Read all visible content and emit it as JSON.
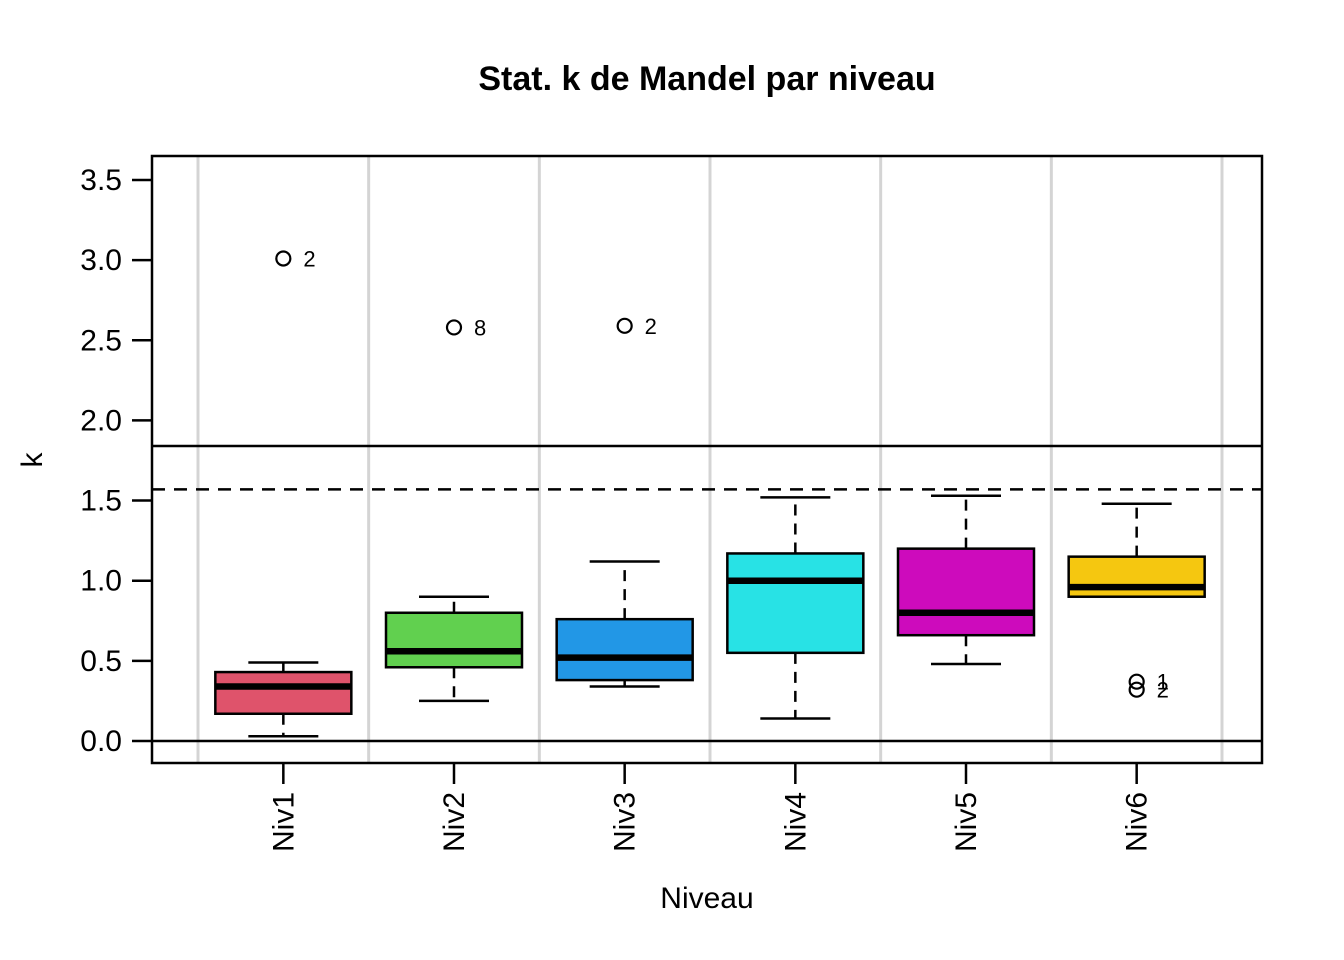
{
  "chart_data": {
    "type": "boxplot",
    "title": "Stat. k de Mandel par niveau",
    "xlabel": "Niveau",
    "ylabel": "k",
    "categories": [
      "Niv1",
      "Niv2",
      "Niv3",
      "Niv4",
      "Niv5",
      "Niv6"
    ],
    "y_tick_labels": [
      "0.0",
      "0.5",
      "1.0",
      "1.5",
      "2.0",
      "2.5",
      "3.0",
      "3.5"
    ],
    "y_tick_values": [
      0.0,
      0.5,
      1.0,
      1.5,
      2.0,
      2.5,
      3.0,
      3.5
    ],
    "ylim": [
      -0.14,
      3.65
    ],
    "grid": {
      "vertical_separators": true,
      "color": "#D4D4D4"
    },
    "legend": "none",
    "reference_lines": [
      {
        "value": 1.84,
        "style": "solid",
        "color": "#000000"
      },
      {
        "value": 1.57,
        "style": "dashed",
        "color": "#000000"
      },
      {
        "value": 0.0,
        "style": "solid",
        "color": "#000000"
      }
    ],
    "series": [
      {
        "category": "Niv1",
        "color": "#DF536B",
        "whisker_low": 0.03,
        "q1": 0.17,
        "median": 0.34,
        "q3": 0.43,
        "whisker_high": 0.49,
        "outliers": [
          {
            "value": 3.01,
            "label": "2"
          }
        ]
      },
      {
        "category": "Niv2",
        "color": "#61D04F",
        "whisker_low": 0.25,
        "q1": 0.46,
        "median": 0.56,
        "q3": 0.8,
        "whisker_high": 0.9,
        "outliers": [
          {
            "value": 2.58,
            "label": "8"
          }
        ]
      },
      {
        "category": "Niv3",
        "color": "#2297E6",
        "whisker_low": 0.34,
        "q1": 0.38,
        "median": 0.52,
        "q3": 0.76,
        "whisker_high": 1.12,
        "outliers": [
          {
            "value": 2.59,
            "label": "2"
          }
        ]
      },
      {
        "category": "Niv4",
        "color": "#28E2E5",
        "whisker_low": 0.14,
        "q1": 0.55,
        "median": 1.0,
        "q3": 1.17,
        "whisker_high": 1.52,
        "outliers": []
      },
      {
        "category": "Niv5",
        "color": "#CD0BBC",
        "whisker_low": 0.48,
        "q1": 0.66,
        "median": 0.8,
        "q3": 1.2,
        "whisker_high": 1.53,
        "outliers": []
      },
      {
        "category": "Niv6",
        "color": "#F5C710",
        "whisker_low": 0.9,
        "q1": 0.9,
        "median": 0.96,
        "q3": 1.15,
        "whisker_high": 1.48,
        "outliers": [
          {
            "value": 0.37,
            "label": "1"
          },
          {
            "value": 0.32,
            "label": "2"
          }
        ]
      }
    ],
    "axis_color": "#000000",
    "box_border_color": "#000000",
    "median_color": "#000000"
  }
}
